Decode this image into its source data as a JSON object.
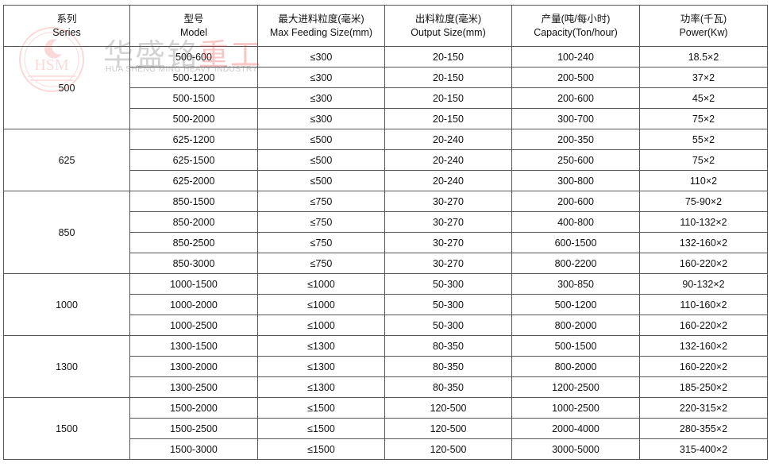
{
  "watermark": {
    "logo_text": "HSM",
    "brand_cn_gray": "华盛铭",
    "brand_cn_red": "重工",
    "brand_en": "HUA SHENG MING HEAVY INDUSTRY"
  },
  "headers": [
    {
      "cn": "系列",
      "en": "Series"
    },
    {
      "cn": "型号",
      "en": "Model"
    },
    {
      "cn": "最大进料粒度(毫米)",
      "en": "Max Feeding Size(mm)"
    },
    {
      "cn": "出料粒度(毫米)",
      "en": "Output Size(mm)"
    },
    {
      "cn": "产量(吨/每小时)",
      "en": "Capacity(Ton/hour)"
    },
    {
      "cn": "功率(千瓦)",
      "en": "Power(Kw)"
    }
  ],
  "groups": [
    {
      "series": "500",
      "rows": [
        [
          "500-600",
          "≤300",
          "20-150",
          "100-240",
          "18.5×2"
        ],
        [
          "500-1200",
          "≤300",
          "20-150",
          "200-500",
          "37×2"
        ],
        [
          "500-1500",
          "≤300",
          "20-150",
          "200-600",
          "45×2"
        ],
        [
          "500-2000",
          "≤300",
          "20-150",
          "300-700",
          "75×2"
        ]
      ]
    },
    {
      "series": "625",
      "rows": [
        [
          "625-1200",
          "≤500",
          "20-240",
          "200-350",
          "55×2"
        ],
        [
          "625-1500",
          "≤500",
          "20-240",
          "250-600",
          "75×2"
        ],
        [
          "625-2000",
          "≤500",
          "20-240",
          "300-800",
          "110×2"
        ]
      ]
    },
    {
      "series": "850",
      "rows": [
        [
          "850-1500",
          "≤750",
          "30-270",
          "200-600",
          "75-90×2"
        ],
        [
          "850-2000",
          "≤750",
          "30-270",
          "400-800",
          "110-132×2"
        ],
        [
          "850-2500",
          "≤750",
          "30-270",
          "600-1500",
          "132-160×2"
        ],
        [
          "850-3000",
          "≤750",
          "30-270",
          "800-2200",
          "160-220×2"
        ]
      ]
    },
    {
      "series": "1000",
      "rows": [
        [
          "1000-1500",
          "≤1000",
          "50-300",
          "300-850",
          "90-132×2"
        ],
        [
          "1000-2000",
          "≤1000",
          "50-300",
          "500-1200",
          "110-160×2"
        ],
        [
          "1000-2500",
          "≤1000",
          "50-300",
          "800-2000",
          "160-220×2"
        ]
      ]
    },
    {
      "series": "1300",
      "rows": [
        [
          "1300-1500",
          "≤1300",
          "80-350",
          "500-1500",
          "132-160×2"
        ],
        [
          "1300-2000",
          "≤1300",
          "80-350",
          "800-2000",
          "160-220×2"
        ],
        [
          "1300-2500",
          "≤1300",
          "80-350",
          "1200-2500",
          "185-250×2"
        ]
      ]
    },
    {
      "series": "1500",
      "rows": [
        [
          "1500-2000",
          "≤1500",
          "120-500",
          "1000-2500",
          "220-315×2"
        ],
        [
          "1500-2500",
          "≤1500",
          "120-500",
          "2000-4000",
          "280-355×2"
        ],
        [
          "1500-3000",
          "≤1500",
          "120-500",
          "3000-5000",
          "315-400×2"
        ]
      ]
    }
  ]
}
